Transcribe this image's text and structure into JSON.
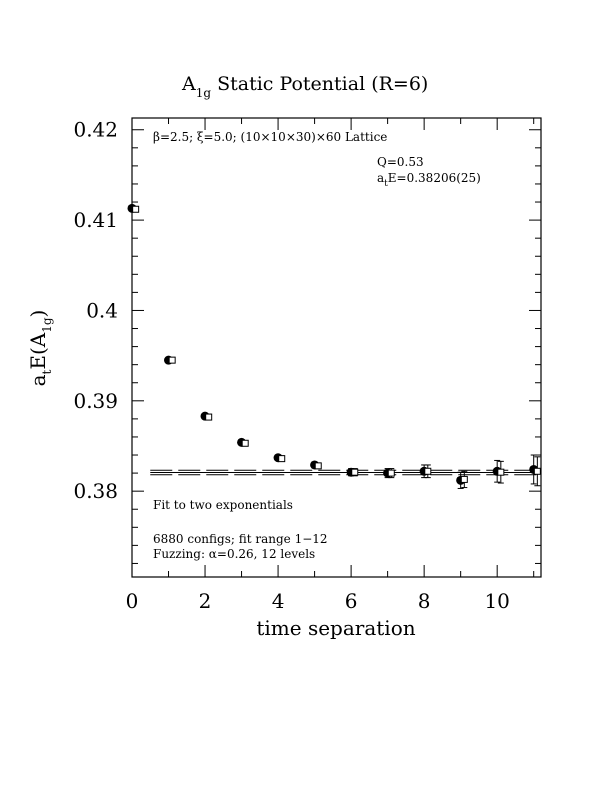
{
  "chart_data": {
    "type": "scatter",
    "title": "A",
    "title_sub": "1g",
    "title_rest": " Static Potential (R=6)",
    "xlabel": "time separation",
    "ylabel_main": "a",
    "ylabel_sub_t": "t",
    "ylabel_rest": "E(A",
    "ylabel_sub_1g": "1g",
    "ylabel_close": ")",
    "xlim": [
      0,
      11.2
    ],
    "ylim": [
      0.3705,
      0.4213
    ],
    "x_ticks": [
      0,
      2,
      4,
      6,
      8,
      10
    ],
    "x_tick_labels": [
      "0",
      "2",
      "4",
      "6",
      "8",
      "10"
    ],
    "y_ticks": [
      0.38,
      0.39,
      0.4,
      0.41,
      0.42
    ],
    "y_tick_labels": [
      "0.38",
      "0.39",
      "0.4",
      "0.41",
      "0.42"
    ],
    "lattice_note": "β=2.5; ξ=5.0; (10×10×30)×60 Lattice",
    "q_note": "Q=0.53",
    "energy_note_prefix": "a",
    "energy_note_sub": "t",
    "energy_note_rest": "E=0.38206(25)",
    "fit_note": "Fit to two exponentials",
    "configs_note": "6880 configs; fit range 1−12",
    "fuzzing_note": "Fuzzing: α=0.26, 12 levels",
    "fit_value": 0.38206,
    "fit_error": 0.00025,
    "fit_x_range": [
      0.5,
      11.2
    ],
    "series": [
      {
        "marker": "filled-circle",
        "points": [
          {
            "x": 0,
            "y": 0.4113,
            "err": 0.0003
          },
          {
            "x": 1,
            "y": 0.3945,
            "err": 0.0003
          },
          {
            "x": 2,
            "y": 0.3883,
            "err": 0.0003
          },
          {
            "x": 3,
            "y": 0.3854,
            "err": 0.0003
          },
          {
            "x": 4,
            "y": 0.3837,
            "err": 0.0003
          },
          {
            "x": 5,
            "y": 0.3829,
            "err": 0.0003
          },
          {
            "x": 6,
            "y": 0.3821,
            "err": 0.0004
          },
          {
            "x": 7,
            "y": 0.382,
            "err": 0.0005
          },
          {
            "x": 8,
            "y": 0.3822,
            "err": 0.0007
          },
          {
            "x": 9,
            "y": 0.3812,
            "err": 0.0009
          },
          {
            "x": 10,
            "y": 0.3822,
            "err": 0.0012
          },
          {
            "x": 11,
            "y": 0.3824,
            "err": 0.0016
          }
        ]
      },
      {
        "marker": "open-square",
        "points": [
          {
            "x": 0.1,
            "y": 0.4112,
            "err": 0.0003
          },
          {
            "x": 1.1,
            "y": 0.3945,
            "err": 0.0003
          },
          {
            "x": 2.1,
            "y": 0.3882,
            "err": 0.0003
          },
          {
            "x": 3.1,
            "y": 0.3853,
            "err": 0.0003
          },
          {
            "x": 4.1,
            "y": 0.3836,
            "err": 0.0003
          },
          {
            "x": 5.1,
            "y": 0.3828,
            "err": 0.0003
          },
          {
            "x": 6.1,
            "y": 0.3821,
            "err": 0.0004
          },
          {
            "x": 7.1,
            "y": 0.382,
            "err": 0.0005
          },
          {
            "x": 8.1,
            "y": 0.3822,
            "err": 0.0007
          },
          {
            "x": 9.1,
            "y": 0.3813,
            "err": 0.0009
          },
          {
            "x": 10.1,
            "y": 0.3821,
            "err": 0.0012
          },
          {
            "x": 11.1,
            "y": 0.3822,
            "err": 0.0016
          }
        ]
      }
    ]
  }
}
